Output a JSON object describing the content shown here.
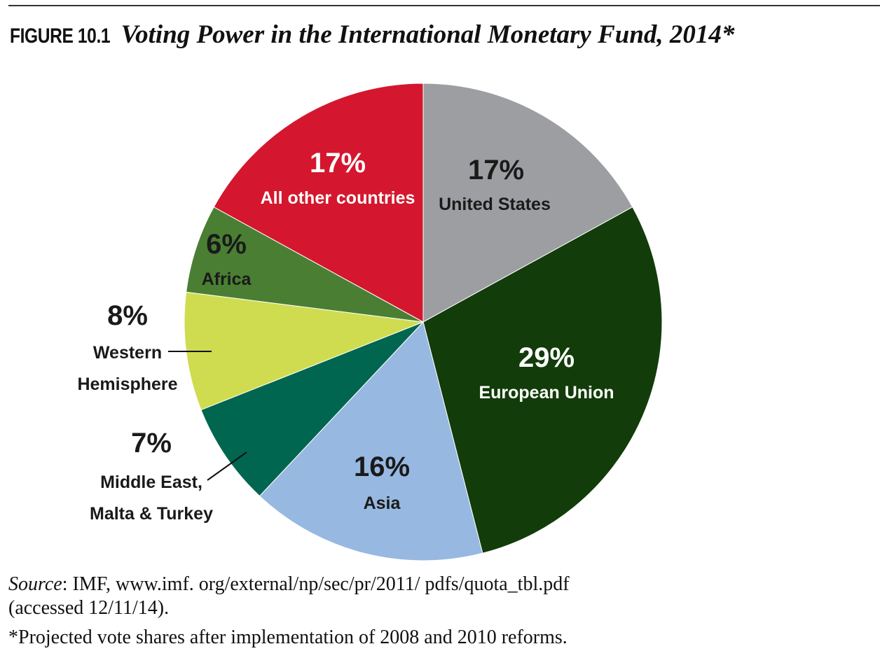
{
  "figure": {
    "label": "FIGURE 10.1",
    "title": "Voting Power in the International Monetary Fund, 2014*"
  },
  "chart_data": {
    "type": "pie",
    "title": "Voting Power in the International Monetary Fund, 2014*",
    "slices": [
      {
        "label": "United States",
        "value": 17,
        "value_label": "17%",
        "color": "#9d9ea1",
        "label_color": "#1a1a1a"
      },
      {
        "label": "European Union",
        "value": 29,
        "value_label": "29%",
        "color": "#123c09",
        "label_color": "#ffffff"
      },
      {
        "label": "Asia",
        "value": 16,
        "value_label": "16%",
        "color": "#97b8e1",
        "label_color": "#1a1a1a"
      },
      {
        "label": "Middle East, Malta & Turkey",
        "value": 7,
        "value_label": "7%",
        "color": "#00664f",
        "label_color": "#1a1a1a"
      },
      {
        "label": "Western Hemisphere",
        "value": 8,
        "value_label": "8%",
        "color": "#cfdc50",
        "label_color": "#1a1a1a"
      },
      {
        "label": "Africa",
        "value": 6,
        "value_label": "6%",
        "color": "#4a7f33",
        "label_color": "#1a1a1a"
      },
      {
        "label": "All other countries",
        "value": 17,
        "value_label": "17%",
        "color": "#d4172e",
        "label_color": "#ffffff"
      }
    ]
  },
  "notes": {
    "source_label": "Source",
    "source_text": ": IMF, www.imf. org/external/np/sec/pr/2011/ pdfs/quota_tbl.pdf",
    "source_text2": "(accessed 12/11/14).",
    "footnote": "*Projected vote shares after implementation of 2008 and 2010 reforms."
  }
}
